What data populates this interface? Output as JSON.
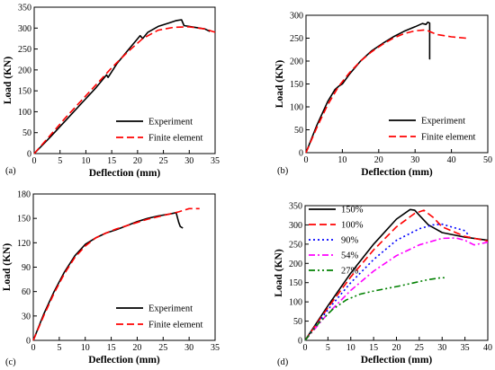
{
  "chart_data": [
    {
      "type": "line",
      "panel": "(a)",
      "xlabel": "Deflection (mm)",
      "ylabel": "Load (KN)",
      "xlim": [
        0,
        35
      ],
      "ylim": [
        0,
        350
      ],
      "xticks": [
        0,
        5,
        10,
        15,
        20,
        25,
        30,
        35
      ],
      "yticks": [
        0,
        50,
        100,
        150,
        200,
        250,
        300,
        350
      ],
      "legend_position": "bottom-right",
      "series": [
        {
          "name": "Experiment",
          "color": "#000000",
          "dash": "solid",
          "x": [
            0,
            3,
            6,
            9,
            12,
            14,
            14.3,
            16,
            18,
            20.5,
            21,
            22,
            24,
            26,
            27.5,
            28.5,
            29,
            30,
            32,
            33,
            34
          ],
          "y": [
            0,
            38,
            78,
            118,
            158,
            188,
            182,
            215,
            245,
            282,
            275,
            290,
            304,
            312,
            318,
            320,
            306,
            304,
            300,
            298,
            292
          ]
        },
        {
          "name": "Finite element",
          "color": "#ff0000",
          "dash": "dashed",
          "x": [
            0,
            3,
            6,
            9,
            12,
            15,
            18,
            21,
            24,
            27,
            30,
            33,
            35
          ],
          "y": [
            0,
            42,
            85,
            125,
            165,
            205,
            242,
            275,
            295,
            302,
            303,
            298,
            290
          ]
        }
      ]
    },
    {
      "type": "line",
      "panel": "(b)",
      "xlabel": "Deflection (mm)",
      "ylabel": "Load (KN)",
      "xlim": [
        0,
        50
      ],
      "ylim": [
        0,
        300
      ],
      "xticks": [
        0,
        10,
        20,
        30,
        40,
        50
      ],
      "yticks": [
        0,
        50,
        100,
        150,
        200,
        250,
        300
      ],
      "legend_position": "bottom-right",
      "series": [
        {
          "name": "Experiment",
          "color": "#000000",
          "dash": "solid",
          "x": [
            0,
            3,
            6,
            8,
            9,
            10,
            12,
            15,
            18,
            21,
            24,
            27,
            30,
            32,
            33,
            33.5,
            34,
            34,
            34.2
          ],
          "y": [
            0,
            60,
            112,
            138,
            145,
            150,
            172,
            200,
            222,
            238,
            253,
            265,
            275,
            282,
            280,
            285,
            283,
            205,
            205
          ]
        },
        {
          "name": "Finite element",
          "color": "#ff0000",
          "dash": "dashed",
          "x": [
            0,
            3,
            6,
            9,
            12,
            15,
            18,
            21,
            24,
            27,
            30,
            33,
            36,
            40,
            44
          ],
          "y": [
            0,
            55,
            105,
            145,
            175,
            200,
            220,
            236,
            250,
            260,
            266,
            268,
            258,
            253,
            250
          ]
        }
      ]
    },
    {
      "type": "line",
      "panel": "(c)",
      "xlabel": "Deflection (mm)",
      "ylabel": "Load (KN)",
      "xlim": [
        0,
        35
      ],
      "ylim": [
        0,
        180
      ],
      "xticks": [
        0,
        5,
        10,
        15,
        20,
        25,
        30,
        35
      ],
      "yticks": [
        0,
        30,
        60,
        90,
        120,
        150,
        180
      ],
      "legend_position": "bottom-right",
      "series": [
        {
          "name": "Experiment",
          "color": "#000000",
          "dash": "solid",
          "x": [
            0,
            2,
            4,
            6,
            8,
            10,
            12,
            14,
            16,
            18,
            20,
            22,
            24,
            26,
            27.5,
            28,
            28.3,
            28.8
          ],
          "y": [
            0,
            32,
            60,
            84,
            104,
            118,
            126,
            132,
            136,
            141,
            146,
            150,
            153,
            155,
            157,
            145,
            140,
            138
          ]
        },
        {
          "name": "Finite element",
          "color": "#ff0000",
          "dash": "dashed",
          "x": [
            0,
            2,
            4,
            6,
            8,
            10,
            12,
            14,
            16,
            18,
            20,
            22,
            24,
            26,
            28,
            30,
            32
          ],
          "y": [
            0,
            30,
            58,
            82,
            102,
            116,
            126,
            132,
            137,
            141,
            145,
            149,
            152,
            155,
            158,
            162,
            162
          ]
        }
      ]
    },
    {
      "type": "line",
      "panel": "(d)",
      "xlabel": "Deflection (mm)",
      "ylabel": "Load (KN)",
      "xlim": [
        0,
        40
      ],
      "ylim": [
        0,
        350
      ],
      "xticks": [
        0,
        5,
        10,
        15,
        20,
        25,
        30,
        35,
        40
      ],
      "yticks": [
        0,
        50,
        100,
        150,
        200,
        250,
        300,
        350
      ],
      "legend_position": "top-left",
      "series": [
        {
          "name": "150%",
          "color": "#000000",
          "dash": "solid",
          "x": [
            0,
            5,
            10,
            15,
            20,
            23,
            24,
            25,
            27,
            30,
            35,
            40
          ],
          "y": [
            0,
            90,
            175,
            250,
            315,
            340,
            338,
            325,
            300,
            280,
            268,
            260
          ]
        },
        {
          "name": "100%",
          "color": "#ff0000",
          "dash": "dashed",
          "x": [
            0,
            5,
            10,
            15,
            20,
            24,
            26,
            28,
            30,
            35,
            40
          ],
          "y": [
            0,
            85,
            165,
            235,
            295,
            330,
            338,
            320,
            295,
            270,
            258
          ]
        },
        {
          "name": "90%",
          "color": "#0000ff",
          "dash": "dotted",
          "x": [
            0,
            5,
            10,
            15,
            20,
            25,
            28,
            30,
            32,
            35,
            36
          ],
          "y": [
            0,
            80,
            150,
            210,
            260,
            290,
            300,
            302,
            295,
            285,
            270
          ]
        },
        {
          "name": "54%",
          "color": "#ff00ff",
          "dash": "dashdot",
          "x": [
            0,
            5,
            10,
            15,
            20,
            25,
            30,
            33,
            35,
            37,
            40
          ],
          "y": [
            0,
            70,
            130,
            180,
            220,
            248,
            265,
            266,
            260,
            248,
            255
          ]
        },
        {
          "name": "27%",
          "color": "#008000",
          "dash": "dashdotdot",
          "x": [
            0,
            3,
            6,
            9,
            12,
            15,
            18,
            21,
            24,
            27,
            30,
            31
          ],
          "y": [
            0,
            45,
            80,
            105,
            120,
            128,
            135,
            142,
            150,
            158,
            163,
            162
          ]
        }
      ]
    }
  ]
}
